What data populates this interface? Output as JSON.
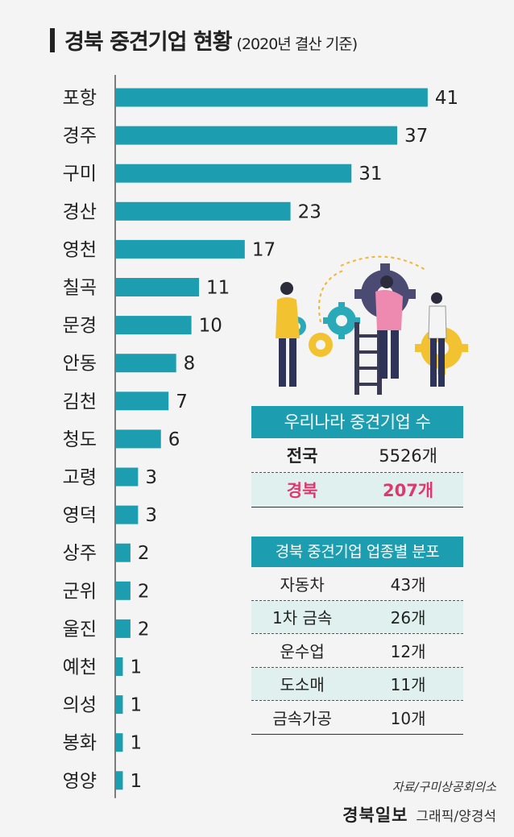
{
  "header": {
    "title": "경북 중견기업 현황",
    "subtitle": "(2020년 결산 기준)"
  },
  "chart_data": {
    "type": "bar",
    "orientation": "horizontal",
    "title": "경북 중견기업 현황",
    "categories": [
      "포항",
      "경주",
      "구미",
      "경산",
      "영천",
      "칠곡",
      "문경",
      "안동",
      "김천",
      "청도",
      "고령",
      "영덕",
      "상주",
      "군위",
      "울진",
      "예천",
      "의성",
      "봉화",
      "영양"
    ],
    "values": [
      41,
      37,
      31,
      23,
      17,
      11,
      10,
      8,
      7,
      6,
      3,
      3,
      2,
      2,
      2,
      1,
      1,
      1,
      1
    ],
    "colors": {
      "bar": "#1d9eb0",
      "axis": "#555555",
      "text": "#222222"
    },
    "grid": false,
    "legend": "none"
  },
  "table_national": {
    "header": "우리나라 중견기업 수",
    "rows": [
      {
        "label": "전국",
        "value": "5526개"
      },
      {
        "label": "경북",
        "value": "207개"
      }
    ],
    "highlight_color": "#e0376f"
  },
  "table_industry": {
    "header": "경북 중견기업 업종별 분포",
    "rows": [
      {
        "label": "자동차",
        "value": "43개"
      },
      {
        "label": "1차 금속",
        "value": "26개"
      },
      {
        "label": "운수업",
        "value": "12개"
      },
      {
        "label": "도소매",
        "value": "11개"
      },
      {
        "label": "금속가공",
        "value": "10개"
      }
    ]
  },
  "footer": {
    "source": "자료/구미상공회의소",
    "logo": "경북일보",
    "credit": "그래픽/양경석"
  },
  "illustration": {
    "icon": "people-with-gears-icon"
  }
}
